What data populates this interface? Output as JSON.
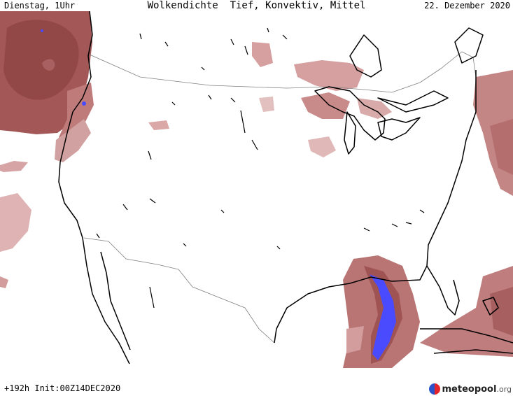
{
  "header": {
    "left": "Dienstag, 1Uhr",
    "title": "Wolkendichte  Tief, Konvektiv, Mittel",
    "date": "22. Dezember 2020"
  },
  "footer": {
    "run": "+192h Init:00Z14DEC2020",
    "brand": "meteopool",
    "brand_tld": ".org"
  },
  "colors": {
    "cloud_dense": "#9a4a4a",
    "cloud_mid": "#b86e6e",
    "cloud_light": "#d9a5a5",
    "convective": "#4a4aff",
    "coast": "#000000",
    "border": "#808080"
  }
}
